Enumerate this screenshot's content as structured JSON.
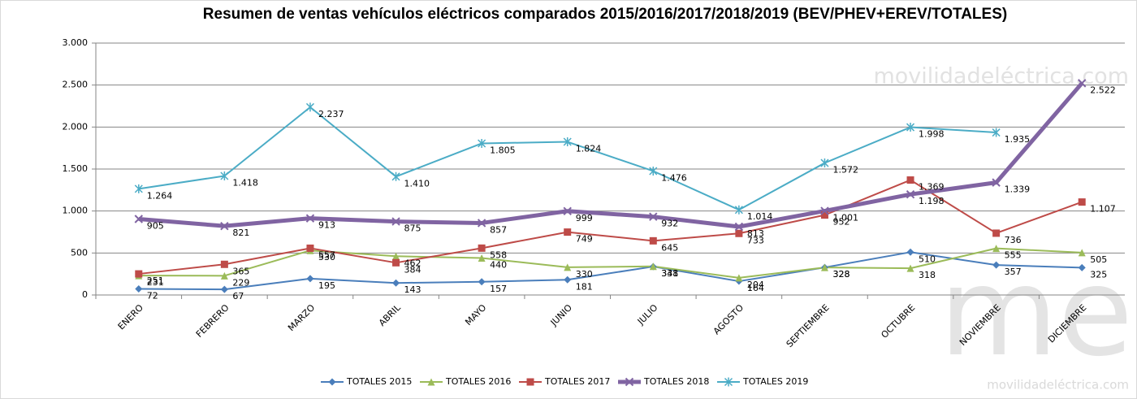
{
  "chart_data": {
    "type": "line",
    "title": "Resumen de ventas vehículos eléctricos comparados 2015/2016/2017/2018/2019  (BEV/PHEV+EREV/TOTALES)",
    "watermark": "movilidadeléctrica.com",
    "logo": "me",
    "categories": [
      "ENERO",
      "FEBRERO",
      "MARZO",
      "ABRIL",
      "MAYO",
      "JUNIO",
      "JULIO",
      "AGOSTO",
      "SEPTIEMBRE",
      "OCTUBRE",
      "NOVIEMBRE",
      "DICIEMBRE"
    ],
    "ylim": [
      0,
      3000
    ],
    "yticks": [
      0,
      500,
      {
        "value": 1000,
        "label": "1.000"
      },
      {
        "value": 1500,
        "label": "1.500"
      },
      {
        "value": 2000,
        "label": "2.000"
      },
      {
        "value": 2500,
        "label": "2.500"
      },
      {
        "value": 3000,
        "label": "3.000"
      }
    ],
    "grid": true,
    "legend": "bottom",
    "series": [
      {
        "name": "TOTALES 2015",
        "color": "#4a7ebb",
        "marker": "diamond",
        "width": 2,
        "values": [
          72,
          67,
          195,
          143,
          157,
          181,
          338,
          164,
          328,
          510,
          357,
          325
        ]
      },
      {
        "name": "TOTALES 2016",
        "color": "#9bbb59",
        "marker": "triangle",
        "width": 2,
        "values": [
          231,
          229,
          530,
          462,
          440,
          330,
          341,
          204,
          328,
          318,
          555,
          505
        ]
      },
      {
        "name": "TOTALES 2017",
        "color": "#be4b48",
        "marker": "square",
        "width": 2,
        "values": [
          251,
          365,
          557,
          384,
          558,
          749,
          645,
          733,
          952,
          1369,
          736,
          1107
        ],
        "value_labels": [
          "251",
          "365",
          "557",
          "384",
          "558",
          "749",
          "645",
          "733",
          "952",
          "1.369",
          "736",
          "1.107"
        ]
      },
      {
        "name": "TOTALES 2018",
        "color": "#8064a2",
        "marker": "x",
        "width": 5,
        "values": [
          905,
          821,
          913,
          875,
          857,
          999,
          932,
          813,
          1001,
          1198,
          1339,
          2522
        ],
        "value_labels": [
          "905",
          "821",
          "913",
          "875",
          "857",
          "999",
          "932",
          "813",
          "1.001",
          "1.198",
          "1.339",
          "2.522"
        ]
      },
      {
        "name": "TOTALES 2019",
        "color": "#4bacc6",
        "marker": "star",
        "width": 2,
        "values": [
          1264,
          1418,
          2237,
          1410,
          1805,
          1824,
          1476,
          1014,
          1572,
          1998,
          1935,
          null
        ],
        "value_labels": [
          "1.264",
          "1.418",
          "2.237",
          "1.410",
          "1.805",
          "1.824",
          "1.476",
          "1.014",
          "1.572",
          "1.998",
          "1.935",
          null
        ]
      }
    ]
  }
}
